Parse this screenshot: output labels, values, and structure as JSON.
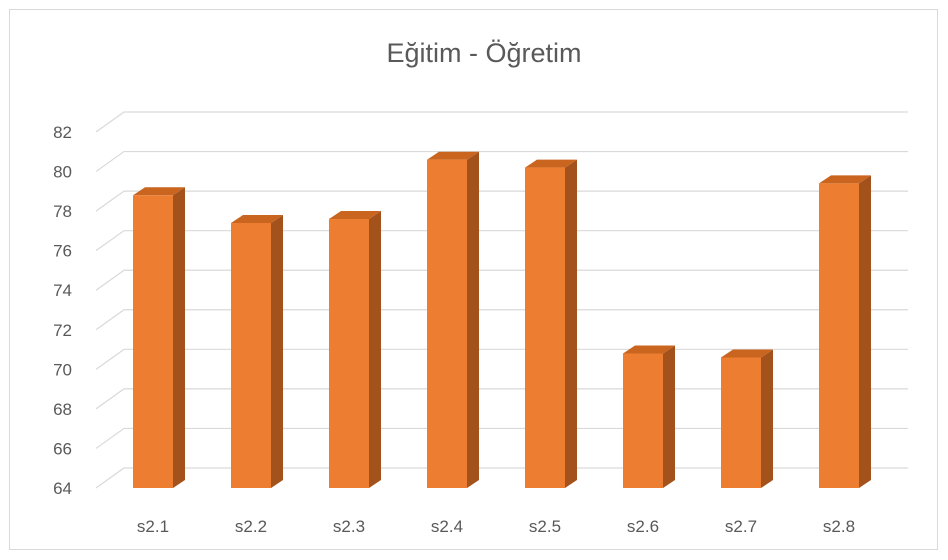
{
  "chart_data": {
    "type": "bar",
    "title": "Eğitim - Öğretim",
    "categories": [
      "s2.1",
      "s2.2",
      "s2.3",
      "s2.4",
      "s2.5",
      "s2.6",
      "s2.7",
      "s2.8"
    ],
    "values": [
      78.8,
      77.4,
      77.6,
      80.6,
      80.2,
      70.8,
      70.6,
      79.4
    ],
    "yticks": [
      "64",
      "66",
      "68",
      "70",
      "72",
      "74",
      "76",
      "78",
      "80",
      "82"
    ],
    "ylim": [
      64,
      82
    ],
    "xlabel": "",
    "ylabel": "",
    "grid": true,
    "legend": "none",
    "style": "3d-column",
    "colors": {
      "bar_front": "#ed7d31",
      "bar_side": "#a4521c",
      "bar_top": "#c9651f",
      "grid": "#d9d9d9",
      "text": "#595959"
    }
  }
}
